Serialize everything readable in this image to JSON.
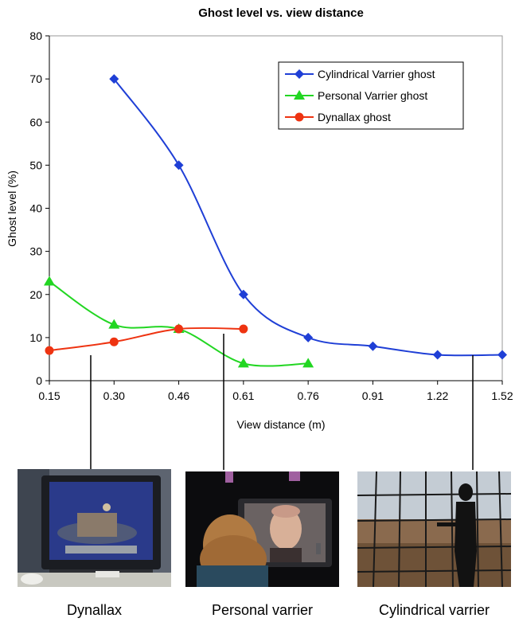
{
  "chart_data": {
    "type": "line",
    "title": "Ghost level vs. view distance",
    "xlabel": "View distance (m)",
    "ylabel": "Ghost level (%)",
    "x_ticks": [
      "0.15",
      "0.30",
      "0.46",
      "0.61",
      "0.76",
      "0.91",
      "1.22",
      "1.52"
    ],
    "y_ticks": [
      "0",
      "10",
      "20",
      "30",
      "40",
      "50",
      "60",
      "70",
      "80"
    ],
    "ylim": [
      0,
      80
    ],
    "grid": false,
    "legend_position": "top-right",
    "series": [
      {
        "name": "Cylindrical Varrier ghost",
        "color": "#1f3fd6",
        "marker": "diamond",
        "x": [
          "0.30",
          "0.46",
          "0.61",
          "0.76",
          "0.91",
          "1.22",
          "1.52"
        ],
        "y": [
          70,
          50,
          20,
          10,
          8,
          6,
          6
        ]
      },
      {
        "name": "Personal Varrier ghost",
        "color": "#22d622",
        "marker": "triangle",
        "x": [
          "0.15",
          "0.30",
          "0.46",
          "0.61",
          "0.76"
        ],
        "y": [
          23,
          13,
          12,
          4,
          4
        ]
      },
      {
        "name": "Dynallax ghost",
        "color": "#ee3311",
        "marker": "circle",
        "x": [
          "0.15",
          "0.30",
          "0.46",
          "0.61"
        ],
        "y": [
          7,
          9,
          12,
          12
        ]
      }
    ]
  },
  "photos": [
    {
      "caption": "Dynallax",
      "icon": "dynallax-display-photo"
    },
    {
      "caption": "Personal varrier",
      "icon": "personal-varrier-photo"
    },
    {
      "caption": "Cylindrical varrier",
      "icon": "cylindrical-varrier-photo"
    }
  ]
}
